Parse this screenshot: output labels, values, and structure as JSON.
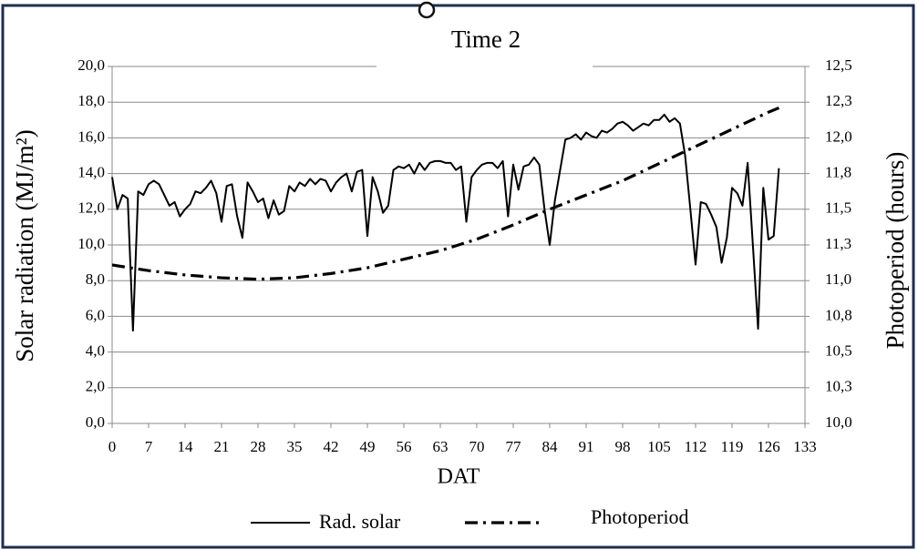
{
  "chart_data": {
    "type": "line",
    "title": "Time 2",
    "xlabel": "DAT",
    "ylabel": "Solar radiation (MJ/m²)",
    "y2label": "Photoperiod (hours)",
    "xlim": [
      0,
      133
    ],
    "xticks": [
      0,
      7,
      14,
      21,
      28,
      35,
      42,
      49,
      56,
      63,
      70,
      77,
      84,
      91,
      98,
      105,
      112,
      119,
      126,
      133
    ],
    "ylim": [
      0,
      20
    ],
    "yticks": [
      {
        "value": 0,
        "label": "0,0"
      },
      {
        "value": 2,
        "label": "2,0"
      },
      {
        "value": 4,
        "label": "4,0"
      },
      {
        "value": 6,
        "label": "6,0"
      },
      {
        "value": 8,
        "label": "8,0"
      },
      {
        "value": 10,
        "label": "10,0"
      },
      {
        "value": 12,
        "label": "12,0"
      },
      {
        "value": 14,
        "label": "14,0"
      },
      {
        "value": 16,
        "label": "16,0"
      },
      {
        "value": 18,
        "label": "18,0"
      },
      {
        "value": 20,
        "label": "20,0"
      }
    ],
    "y2lim": [
      10,
      12.5
    ],
    "y2ticks": [
      {
        "value": 10,
        "label": "10,0"
      },
      {
        "value": 10.25,
        "label": "10,3"
      },
      {
        "value": 10.5,
        "label": "10,5"
      },
      {
        "value": 10.75,
        "label": "10,8"
      },
      {
        "value": 11,
        "label": "11,0"
      },
      {
        "value": 11.25,
        "label": "11,3"
      },
      {
        "value": 11.5,
        "label": "11,5"
      },
      {
        "value": 11.75,
        "label": "11,8"
      },
      {
        "value": 12,
        "label": "12,0"
      },
      {
        "value": 12.25,
        "label": "12,3"
      },
      {
        "value": 12.5,
        "label": "12,5"
      }
    ],
    "grid": true,
    "legend": "bottom",
    "series": [
      {
        "name": "Rad. solar",
        "color": "#000000",
        "dash": "solid",
        "x": [
          0,
          1,
          2,
          3,
          4,
          5,
          6,
          7,
          8,
          9,
          10,
          11,
          12,
          13,
          14,
          15,
          16,
          17,
          18,
          19,
          20,
          21,
          22,
          23,
          24,
          25,
          26,
          27,
          28,
          29,
          30,
          31,
          32,
          33,
          34,
          35,
          36,
          37,
          38,
          39,
          40,
          41,
          42,
          43,
          44,
          45,
          46,
          47,
          48,
          49,
          50,
          51,
          52,
          53,
          54,
          55,
          56,
          57,
          58,
          59,
          60,
          61,
          62,
          63,
          64,
          65,
          66,
          67,
          68,
          69,
          70,
          71,
          72,
          73,
          74,
          75,
          76,
          77,
          78,
          79,
          80,
          81,
          82,
          83,
          84,
          85,
          86,
          87,
          88,
          89,
          90,
          91,
          92,
          93,
          94,
          95,
          96,
          97,
          98,
          99,
          100,
          101,
          102,
          103,
          104,
          105,
          106,
          107,
          108,
          109,
          110,
          111,
          112,
          113,
          114,
          115,
          116,
          117,
          118,
          119,
          120,
          121,
          122,
          123,
          124,
          125,
          126,
          127,
          128
        ],
        "values": [
          13.8,
          12.0,
          12.8,
          12.6,
          5.2,
          13.0,
          12.8,
          13.4,
          13.6,
          13.4,
          12.8,
          12.2,
          12.4,
          11.6,
          12.0,
          12.3,
          13.0,
          12.9,
          13.2,
          13.6,
          12.9,
          11.3,
          13.3,
          13.4,
          11.6,
          10.4,
          13.5,
          13.0,
          12.4,
          12.6,
          11.5,
          12.5,
          11.7,
          11.9,
          13.3,
          13.0,
          13.5,
          13.3,
          13.7,
          13.4,
          13.7,
          13.6,
          13.0,
          13.5,
          13.8,
          14.0,
          13.0,
          14.1,
          14.2,
          10.5,
          13.8,
          13.0,
          11.8,
          12.2,
          14.2,
          14.4,
          14.3,
          14.5,
          14.0,
          14.6,
          14.2,
          14.6,
          14.7,
          14.7,
          14.6,
          14.6,
          14.2,
          14.4,
          11.3,
          13.8,
          14.2,
          14.5,
          14.6,
          14.6,
          14.3,
          14.7,
          11.6,
          14.5,
          13.1,
          14.4,
          14.5,
          14.9,
          14.5,
          12.0,
          10.0,
          12.5,
          14.2,
          15.9,
          16.0,
          16.2,
          15.9,
          16.3,
          16.1,
          16.0,
          16.4,
          16.3,
          16.5,
          16.8,
          16.9,
          16.7,
          16.4,
          16.6,
          16.8,
          16.7,
          17.0,
          17.0,
          17.3,
          16.9,
          17.1,
          16.8,
          15.0,
          12.0,
          8.9,
          12.4,
          12.3,
          11.7,
          11.0,
          9.0,
          10.4,
          13.2,
          12.9,
          12.2,
          14.6,
          10.0,
          5.3,
          13.2,
          10.3,
          10.5,
          14.3
        ]
      },
      {
        "name": "Photoperiod",
        "color": "#000000",
        "dash": "dashdot",
        "axis": "y2",
        "x": [
          0,
          7,
          14,
          21,
          28,
          35,
          42,
          49,
          56,
          63,
          70,
          77,
          84,
          91,
          98,
          105,
          112,
          119,
          126,
          128
        ],
        "values": [
          11.11,
          11.07,
          11.04,
          11.02,
          11.01,
          11.02,
          11.05,
          11.09,
          11.15,
          11.21,
          11.29,
          11.39,
          11.5,
          11.6,
          11.7,
          11.82,
          11.94,
          12.06,
          12.18,
          12.21
        ]
      }
    ]
  }
}
